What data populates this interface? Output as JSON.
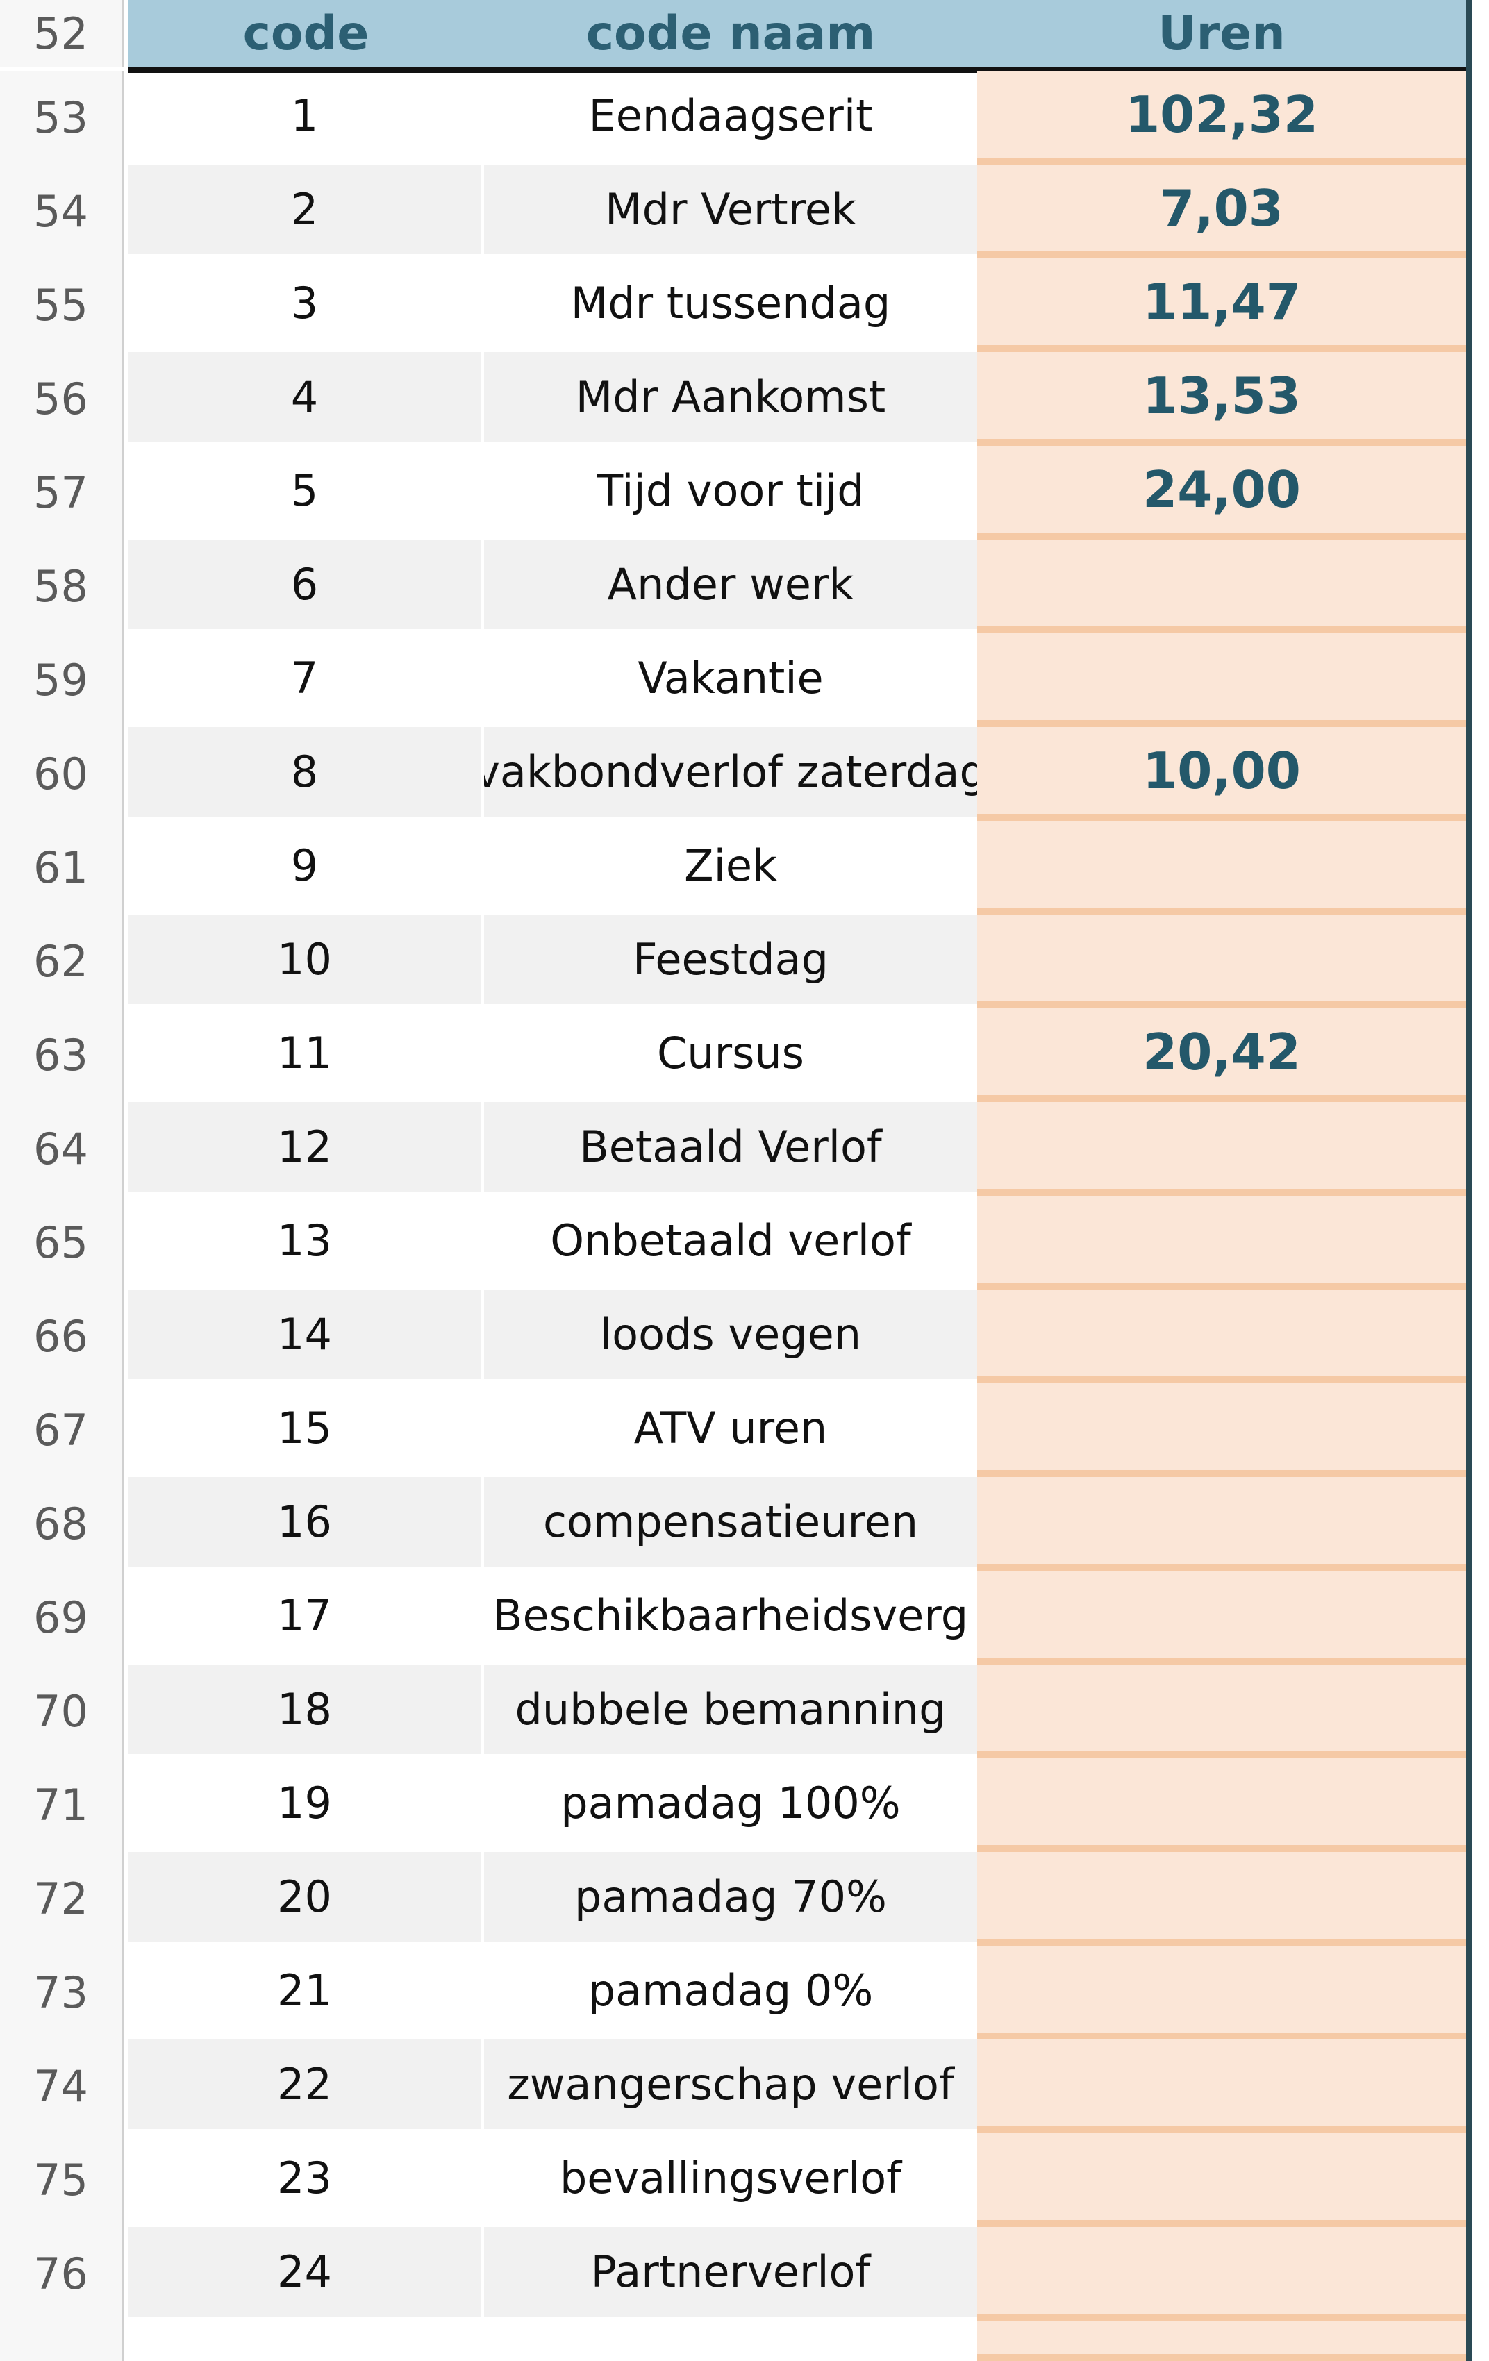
{
  "header": {
    "row": 52,
    "columns": [
      "code",
      "code naam",
      "Uren"
    ]
  },
  "rows": [
    {
      "row": 53,
      "code": 1,
      "name": "Eendaagserit",
      "hours": "102,32"
    },
    {
      "row": 54,
      "code": 2,
      "name": "Mdr Vertrek",
      "hours": "7,03"
    },
    {
      "row": 55,
      "code": 3,
      "name": "Mdr tussendag",
      "hours": "11,47"
    },
    {
      "row": 56,
      "code": 4,
      "name": "Mdr Aankomst",
      "hours": "13,53"
    },
    {
      "row": 57,
      "code": 5,
      "name": "Tijd voor tijd",
      "hours": "24,00"
    },
    {
      "row": 58,
      "code": 6,
      "name": "Ander werk"
    },
    {
      "row": 59,
      "code": 7,
      "name": "Vakantie"
    },
    {
      "row": 60,
      "code": 8,
      "name": "vakbondverlof zaterdag",
      "hours": "10,00"
    },
    {
      "row": 61,
      "code": 9,
      "name": "Ziek"
    },
    {
      "row": 62,
      "code": 10,
      "name": "Feestdag"
    },
    {
      "row": 63,
      "code": 11,
      "name": "Cursus",
      "hours": "20,42"
    },
    {
      "row": 64,
      "code": 12,
      "name": "Betaald Verlof"
    },
    {
      "row": 65,
      "code": 13,
      "name": "Onbetaald verlof"
    },
    {
      "row": 66,
      "code": 14,
      "name": "loods vegen"
    },
    {
      "row": 67,
      "code": 15,
      "name": "ATV uren"
    },
    {
      "row": 68,
      "code": 16,
      "name": "compensatieuren"
    },
    {
      "row": 69,
      "code": 17,
      "name": "Beschikbaarheidsverg"
    },
    {
      "row": 70,
      "code": 18,
      "name": "dubbele bemanning"
    },
    {
      "row": 71,
      "code": 19,
      "name": "pamadag 100%"
    },
    {
      "row": 72,
      "code": 20,
      "name": "pamadag 70%"
    },
    {
      "row": 73,
      "code": 21,
      "name": "pamadag 0%"
    },
    {
      "row": 74,
      "code": 22,
      "name": "zwangerschap verlof"
    },
    {
      "row": 75,
      "code": 23,
      "name": "bevallingsverlof"
    },
    {
      "row": 76,
      "code": 24,
      "name": "Partnerverlof"
    }
  ]
}
